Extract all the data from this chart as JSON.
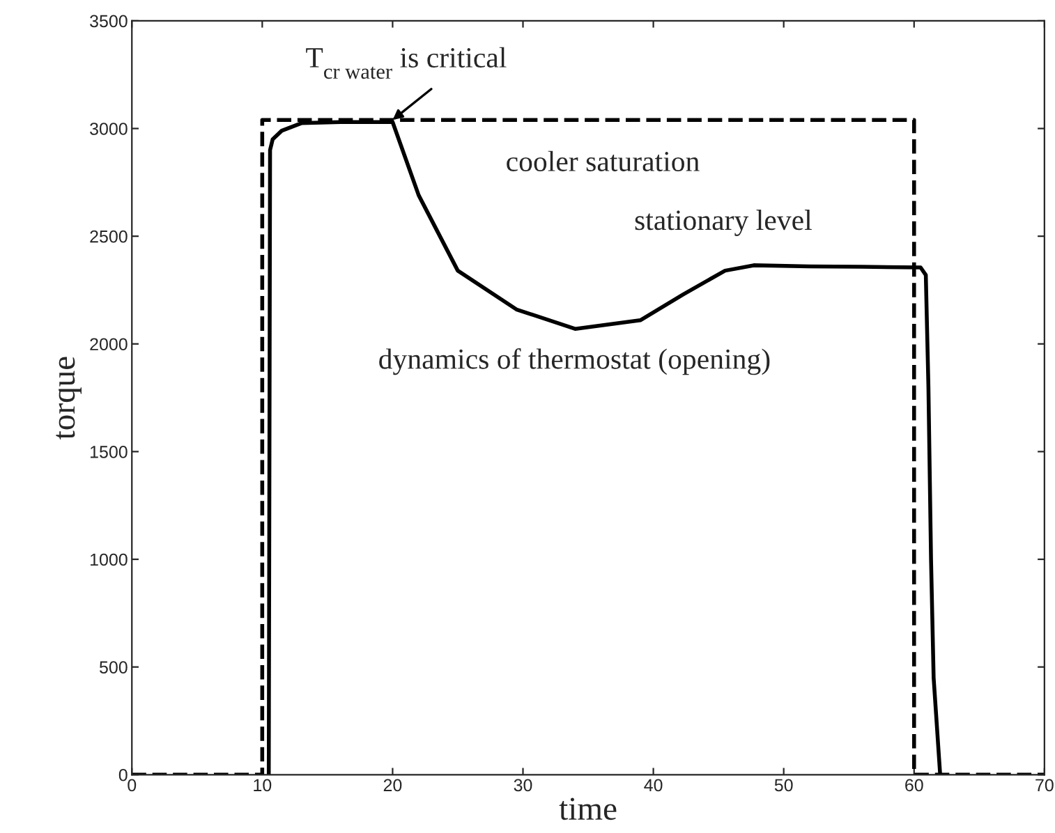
{
  "chart_data": {
    "type": "line",
    "xlabel": "time",
    "ylabel": "torque",
    "xlim": [
      0,
      70
    ],
    "ylim": [
      0,
      3500
    ],
    "xticks": [
      0,
      10,
      20,
      30,
      40,
      50,
      60,
      70
    ],
    "yticks": [
      0,
      500,
      1000,
      1500,
      2000,
      2500,
      3000,
      3500
    ],
    "grid": false,
    "legend": false,
    "series": [
      {
        "color": "#000000",
        "line_style": "dashed",
        "x": [
          0,
          10,
          10,
          60,
          60,
          70
        ],
        "values": [
          0,
          0,
          3040,
          3040,
          0,
          0
        ]
      },
      {
        "color": "#000000",
        "line_style": "solid",
        "x": [
          10.5,
          10.6,
          10.8,
          11.5,
          13,
          16,
          20,
          22,
          25,
          29.5,
          34,
          39,
          42.3,
          45.5,
          47.7,
          52,
          56,
          60.5,
          60.9,
          61.1,
          61.3,
          61.5,
          62
        ],
        "values": [
          0,
          2900,
          2950,
          2990,
          3025,
          3030,
          3030,
          2690,
          2340,
          2160,
          2070,
          2110,
          2230,
          2340,
          2365,
          2360,
          2358,
          2355,
          2320,
          1800,
          1000,
          450,
          0
        ]
      }
    ],
    "annotations": [
      {
        "text": "T$_{cr water}$ is critical",
        "x": 20,
        "y": 3040
      },
      "cooler saturation",
      "stationary level",
      "dynamics of thermostat (opening)"
    ]
  }
}
